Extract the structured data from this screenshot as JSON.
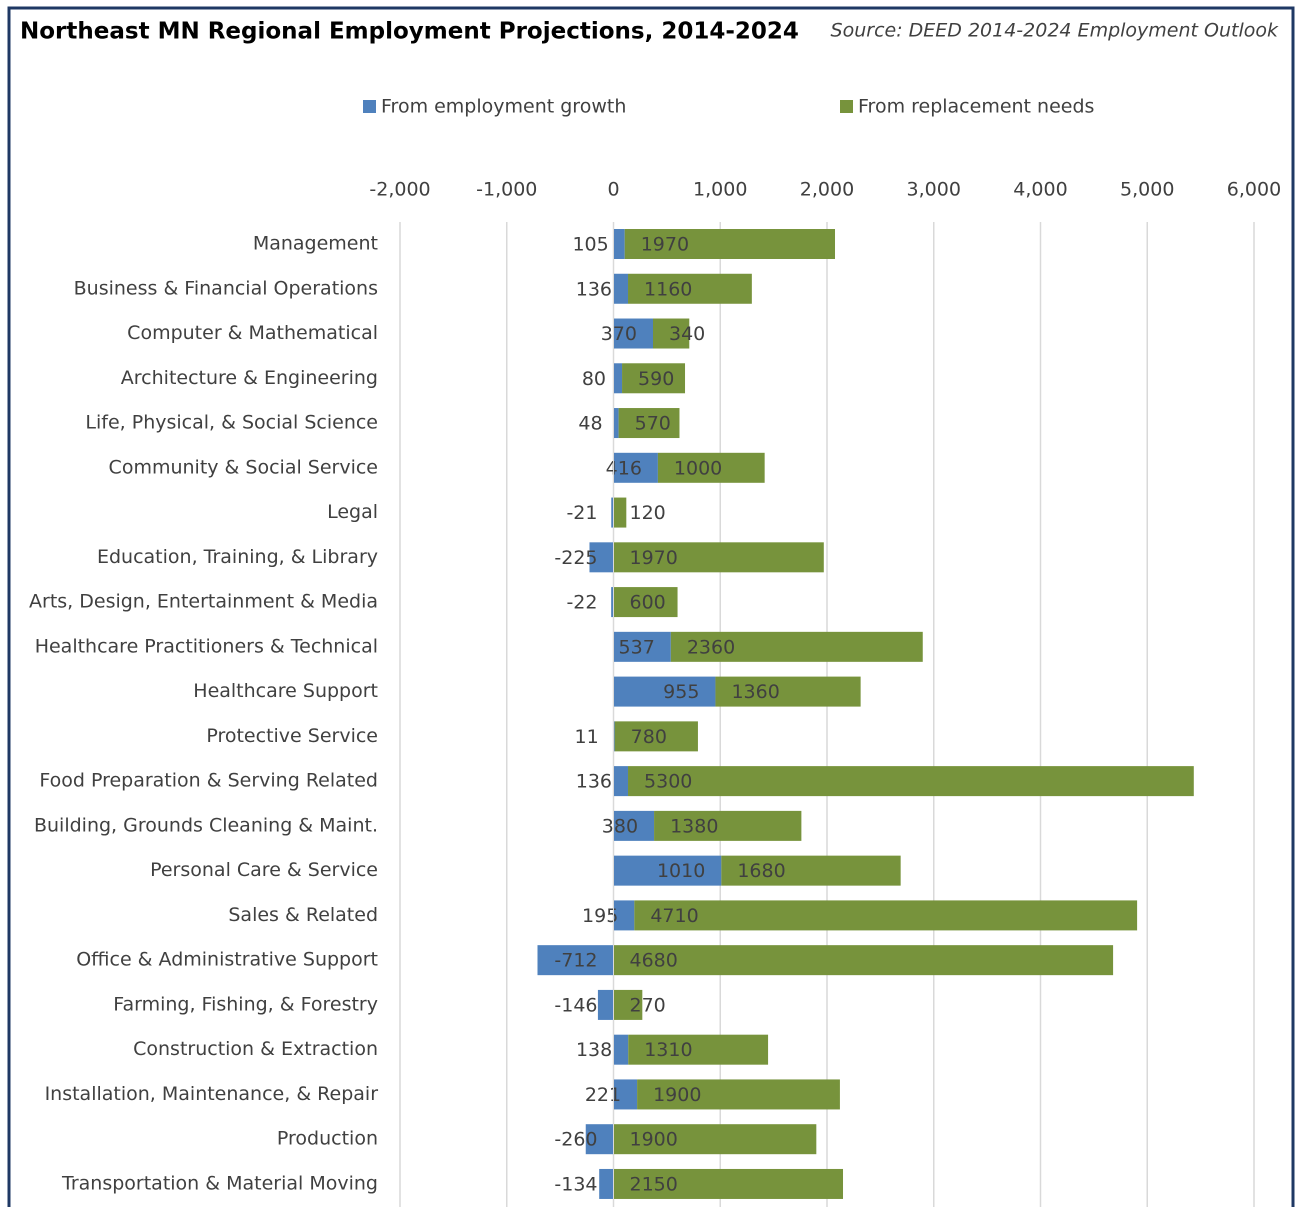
{
  "chart_data": {
    "type": "bar",
    "title": "Northeast MN Regional Employment Projections, 2014-2024",
    "subtitle": "Source: DEED 2014-2024 Employment Outlook",
    "orientation": "horizontal",
    "stacked": true,
    "legend": "top",
    "grid": true,
    "categories": [
      "Management",
      "Business & Financial Operations",
      "Computer & Mathematical",
      "Architecture & Engineering",
      "Life, Physical, & Social Science",
      "Community & Social Service",
      "Legal",
      "Education, Training, & Library",
      "Arts, Design, Entertainment & Media ",
      "Healthcare Practitioners & Technical",
      "Healthcare Support",
      "Protective Service",
      "Food Preparation & Serving Related",
      "Building, Grounds Cleaning & Maint.",
      "Personal Care & Service",
      "Sales & Related",
      "Office & Administrative Support",
      "Farming, Fishing, & Forestry",
      "Construction & Extraction",
      "Installation, Maintenance, & Repair",
      "Production",
      "Transportation & Material Moving"
    ],
    "series": [
      {
        "name": "From employment growth",
        "color": "#4f81bd",
        "values": [
          105,
          136,
          370,
          80,
          48,
          416,
          -21,
          -225,
          -22,
          537,
          955,
          11,
          136,
          380,
          1010,
          195,
          -712,
          -146,
          138,
          221,
          -260,
          -134
        ]
      },
      {
        "name": "From replacement needs",
        "color": "#77933c",
        "values": [
          1970,
          1160,
          340,
          590,
          570,
          1000,
          120,
          1970,
          600,
          2360,
          1360,
          780,
          5300,
          1380,
          1680,
          4710,
          4680,
          270,
          1310,
          1900,
          1900,
          2150
        ]
      }
    ],
    "xlim": [
      -2000,
      6000
    ],
    "xticks": [
      {
        "value": -2000,
        "label": "-2,000"
      },
      {
        "value": -1000,
        "label": "-1,000"
      },
      0,
      {
        "value": 1000,
        "label": "1,000"
      },
      {
        "value": 2000,
        "label": "2,000"
      },
      {
        "value": 3000,
        "label": "3,000"
      },
      {
        "value": 4000,
        "label": "4,000"
      },
      {
        "value": 5000,
        "label": "5,000"
      },
      {
        "value": 6000,
        "label": "6,000"
      }
    ]
  }
}
